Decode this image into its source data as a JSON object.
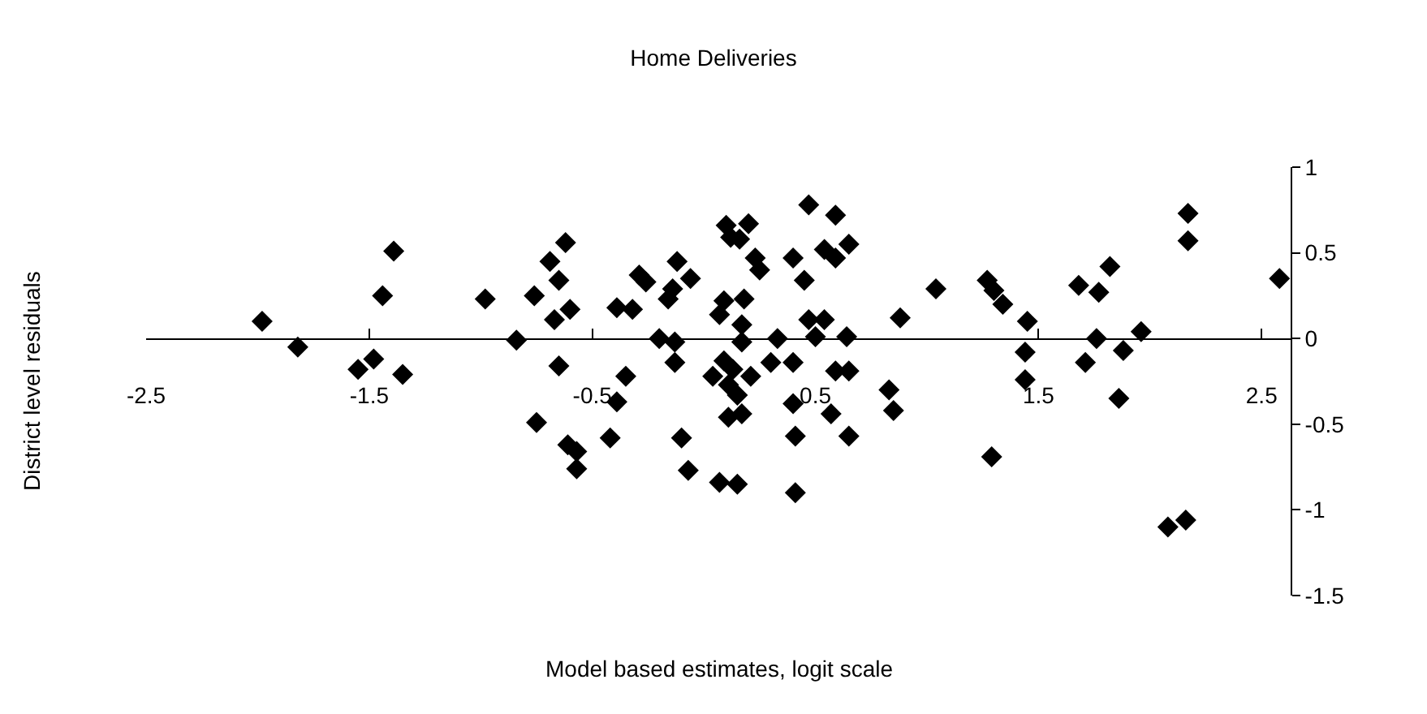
{
  "chart_data": {
    "type": "scatter",
    "title": "Home Deliveries",
    "xlabel": "Model based estimates, logit scale",
    "ylabel": "District level residuals",
    "xlim": [
      -2.5,
      2.63
    ],
    "xticks": [
      -2.5,
      -1.5,
      -0.5,
      0.5,
      1.5,
      2.5
    ],
    "ylim": [
      -1.5,
      1
    ],
    "yticks": [
      -1.5,
      -1,
      -0.5,
      0,
      0.5,
      1
    ],
    "marker": "diamond",
    "series": [
      {
        "color": "#000000",
        "x": [
          -1.98,
          -1.82,
          -1.39,
          -1.44,
          -1.48,
          -1.55,
          -1.35,
          -0.98,
          -0.84,
          -0.62,
          -0.69,
          -0.65,
          -0.76,
          -0.6,
          -0.67,
          -0.65,
          -0.75,
          -0.61,
          -0.57,
          -0.57,
          -0.39,
          -0.32,
          -0.35,
          -0.39,
          -0.42,
          -0.29,
          -0.26,
          -0.12,
          -0.06,
          -0.14,
          -0.16,
          -0.2,
          -0.13,
          -0.13,
          -0.1,
          -0.07,
          0.07,
          0.15,
          0.1,
          0.2,
          0.12,
          0.16,
          0.23,
          0.25,
          0.09,
          0.18,
          0.07,
          0.17,
          0.17,
          0.04,
          0.09,
          0.13,
          0.21,
          0.11,
          0.15,
          0.11,
          0.17,
          0.33,
          0.3,
          0.4,
          0.45,
          0.47,
          0.59,
          0.54,
          0.59,
          0.65,
          0.47,
          0.54,
          0.5,
          0.4,
          0.4,
          0.41,
          0.41,
          0.64,
          0.59,
          0.65,
          0.57,
          0.65,
          0.88,
          0.83,
          0.85,
          1.04,
          1.27,
          1.3,
          1.34,
          1.45,
          1.44,
          1.44,
          1.29,
          1.68,
          1.77,
          1.82,
          1.76,
          1.71,
          1.88,
          1.96,
          1.86,
          2.17,
          2.17,
          2.08,
          2.16,
          2.58
        ],
        "values": [
          0.1,
          -0.05,
          0.51,
          0.25,
          -0.12,
          -0.18,
          -0.21,
          0.23,
          -0.01,
          0.56,
          0.45,
          0.34,
          0.25,
          0.17,
          0.11,
          -0.16,
          -0.49,
          -0.62,
          -0.66,
          -0.76,
          0.18,
          0.17,
          -0.22,
          -0.37,
          -0.58,
          0.37,
          0.33,
          0.45,
          0.35,
          0.29,
          0.23,
          0.0,
          -0.02,
          -0.14,
          -0.58,
          -0.77,
          -0.84,
          -0.85,
          0.66,
          0.67,
          0.59,
          0.58,
          0.47,
          0.4,
          0.22,
          0.23,
          0.14,
          0.08,
          -0.02,
          -0.22,
          -0.13,
          -0.18,
          -0.22,
          -0.27,
          -0.33,
          -0.46,
          -0.44,
          0.0,
          -0.14,
          0.47,
          0.34,
          0.78,
          0.72,
          0.52,
          0.47,
          0.55,
          0.11,
          0.11,
          0.01,
          -0.14,
          -0.38,
          -0.57,
          -0.9,
          0.01,
          -0.19,
          -0.19,
          -0.44,
          -0.57,
          0.12,
          -0.3,
          -0.42,
          0.29,
          0.34,
          0.28,
          0.2,
          0.1,
          -0.08,
          -0.24,
          -0.69,
          0.31,
          0.27,
          0.42,
          0.0,
          -0.14,
          -0.07,
          0.04,
          -0.35,
          0.73,
          0.57,
          -1.1,
          -1.06,
          0.35
        ]
      }
    ]
  }
}
